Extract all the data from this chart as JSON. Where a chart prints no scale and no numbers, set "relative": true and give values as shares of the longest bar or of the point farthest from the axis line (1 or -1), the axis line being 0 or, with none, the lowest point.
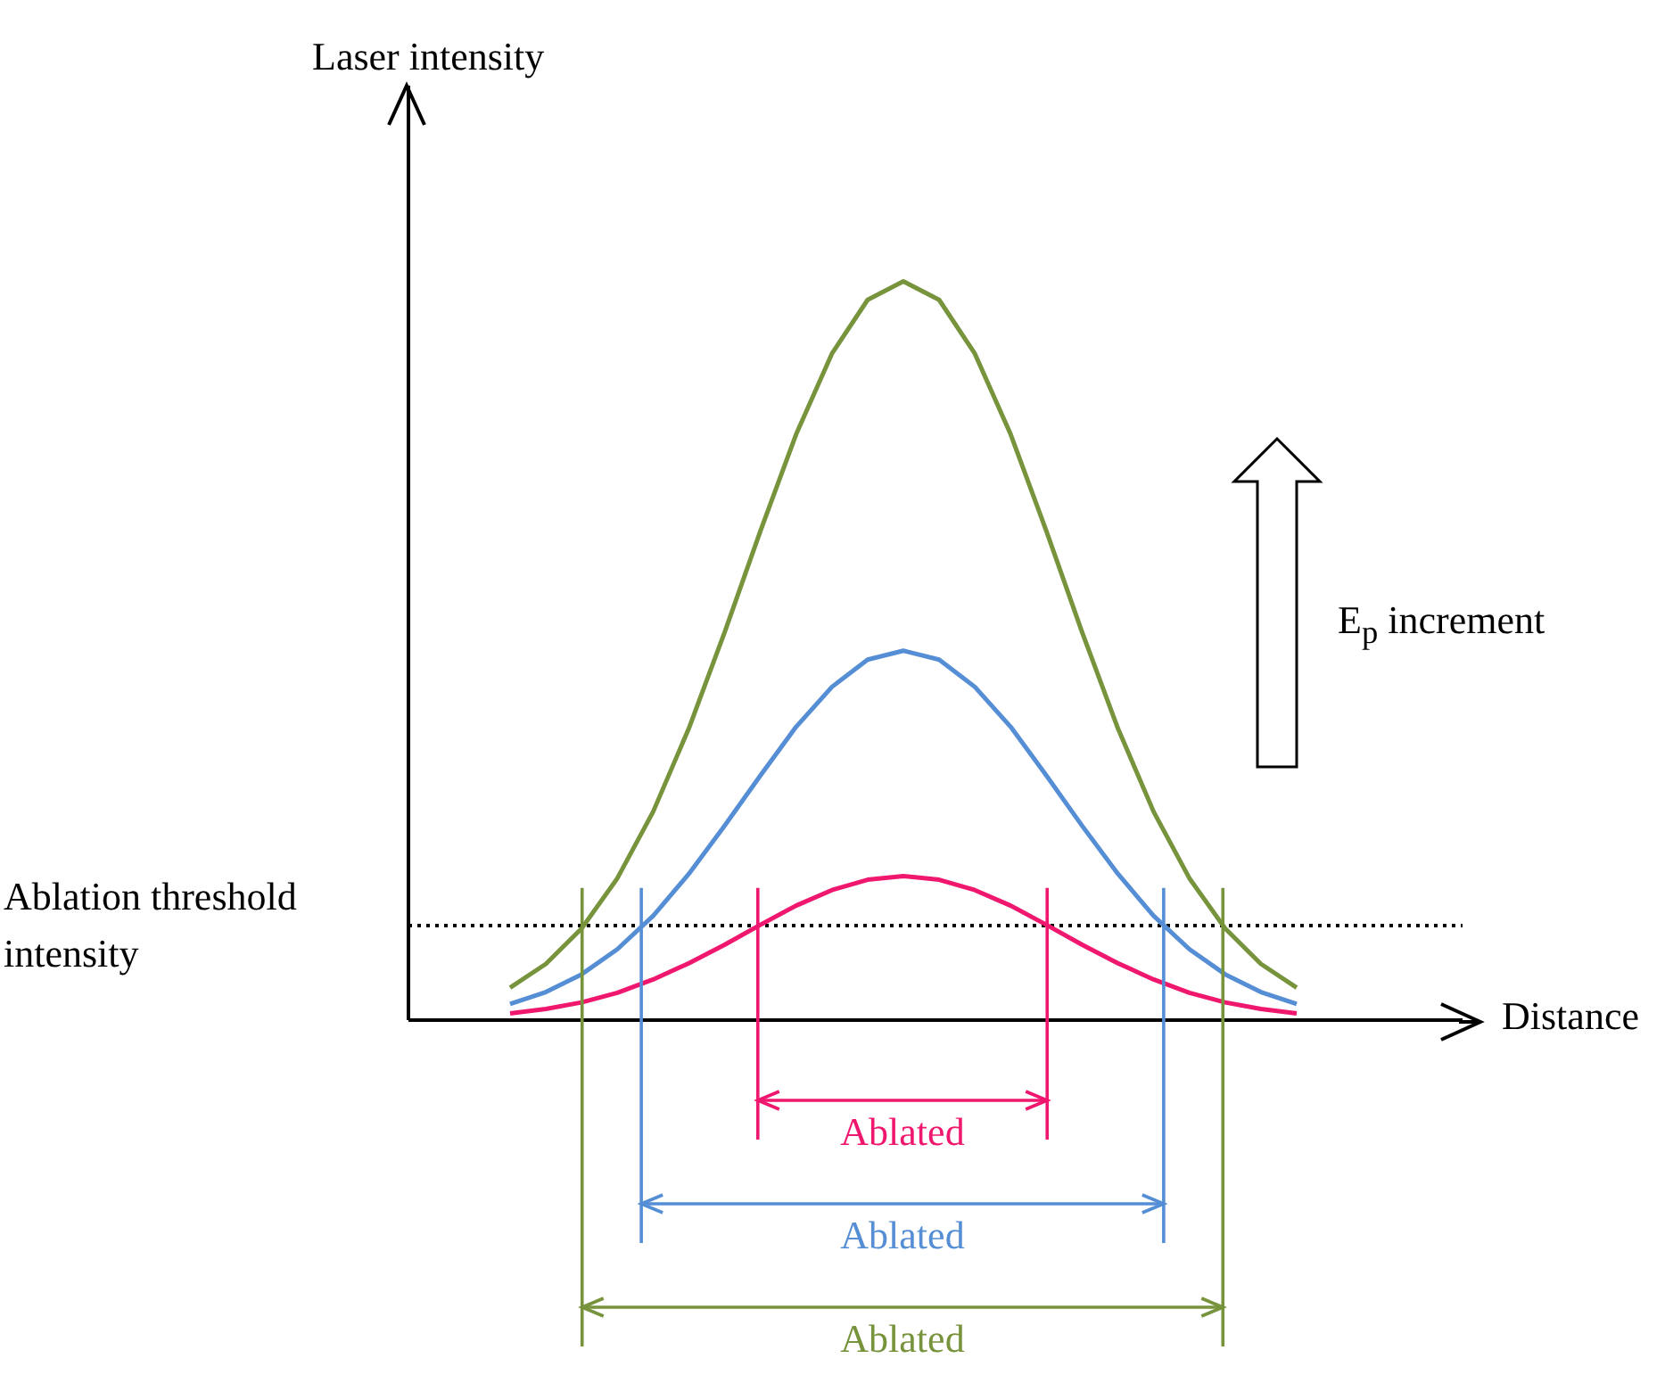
{
  "chart_data": {
    "type": "line",
    "relative": true,
    "xlabel": "Distance",
    "categories": [
      null,
      null,
      null,
      null,
      null,
      null,
      null,
      null,
      null,
      null,
      null,
      null,
      null,
      null,
      null,
      null,
      null,
      null,
      null,
      null,
      null,
      null,
      null
    ],
    "series": [
      {
        "color": "#f0186e",
        "values": [
          0.009,
          0.015,
          0.024,
          0.037,
          0.055,
          0.077,
          0.102,
          0.129,
          0.155,
          0.176,
          0.19,
          0.195,
          0.19,
          0.176,
          0.155,
          0.129,
          0.102,
          0.077,
          0.055,
          0.037,
          0.024,
          0.015,
          0.009
        ]
      },
      {
        "color": "#558ed5",
        "values": [
          0.022,
          0.038,
          0.062,
          0.096,
          0.141,
          0.198,
          0.263,
          0.331,
          0.397,
          0.451,
          0.488,
          0.5,
          0.488,
          0.451,
          0.397,
          0.331,
          0.263,
          0.198,
          0.141,
          0.096,
          0.062,
          0.038,
          0.022
        ]
      },
      {
        "color": "#77933c",
        "values": [
          0.044,
          0.076,
          0.124,
          0.192,
          0.282,
          0.395,
          0.525,
          0.662,
          0.793,
          0.902,
          0.975,
          1,
          0.975,
          0.902,
          0.793,
          0.662,
          0.525,
          0.395,
          0.282,
          0.192,
          0.124,
          0.076,
          0.044
        ]
      }
    ],
    "ref_lines": [
      {
        "axis": "y",
        "value": 0.128,
        "label": "Ablation threshold intensity",
        "color": "#000000",
        "line_style": "dotted"
      }
    ],
    "annotations": [
      "Laser intensity",
      "E$_{p}$ increment",
      "Ablated",
      "Ablated",
      "Ablated"
    ],
    "marker": "none",
    "line_style": "solid",
    "grid": false,
    "legend": false
  }
}
